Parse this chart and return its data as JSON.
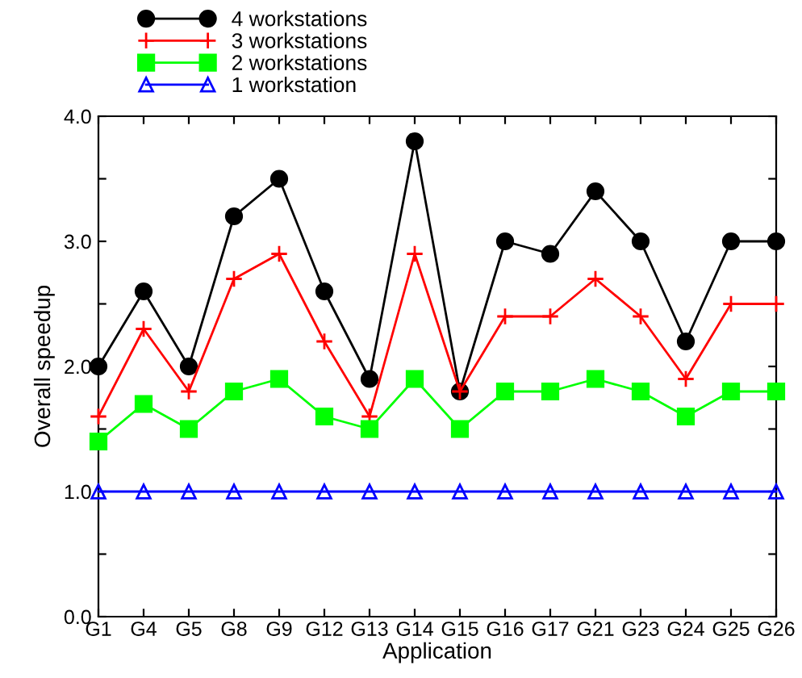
{
  "chart_data": {
    "type": "line",
    "xlabel": "Application",
    "ylabel": "Overall speedup",
    "categories": [
      "G1",
      "G4",
      "G5",
      "G8",
      "G9",
      "G12",
      "G13",
      "G14",
      "G15",
      "G16",
      "G17",
      "G21",
      "G23",
      "G24",
      "G25",
      "G26"
    ],
    "series": [
      {
        "name": "4 workstations",
        "color": "#000000",
        "marker": "circle",
        "values": [
          2.0,
          2.6,
          2.0,
          3.2,
          3.5,
          2.6,
          1.9,
          3.8,
          1.8,
          3.0,
          2.9,
          3.4,
          3.0,
          2.2,
          3.0,
          3.0
        ]
      },
      {
        "name": "3 workstations",
        "color": "#ff0000",
        "marker": "cross",
        "values": [
          1.6,
          2.3,
          1.8,
          2.7,
          2.9,
          2.2,
          1.6,
          2.9,
          1.8,
          2.4,
          2.4,
          2.7,
          2.4,
          1.9,
          2.5,
          2.5
        ]
      },
      {
        "name": "2 workstations",
        "color": "#00ff00",
        "marker": "square",
        "values": [
          1.4,
          1.7,
          1.5,
          1.8,
          1.9,
          1.6,
          1.5,
          1.9,
          1.5,
          1.8,
          1.8,
          1.9,
          1.8,
          1.6,
          1.8,
          1.8
        ]
      },
      {
        "name": "1 workstation",
        "color": "#0000ff",
        "marker": "triangle",
        "values": [
          1.0,
          1.0,
          1.0,
          1.0,
          1.0,
          1.0,
          1.0,
          1.0,
          1.0,
          1.0,
          1.0,
          1.0,
          1.0,
          1.0,
          1.0,
          1.0
        ]
      }
    ],
    "ylim": [
      0,
      4.0
    ],
    "yticks": [
      {
        "value": 0,
        "label": "0.0"
      },
      {
        "value": 0.5,
        "label": null
      },
      {
        "value": 1.0,
        "label": "1.0"
      },
      {
        "value": 1.5,
        "label": null
      },
      {
        "value": 2.0,
        "label": "2.0"
      },
      {
        "value": 2.5,
        "label": null
      },
      {
        "value": 3.0,
        "label": "3.0"
      },
      {
        "value": 3.5,
        "label": null
      },
      {
        "value": 4.0,
        "label": "4.0"
      }
    ],
    "grid": false,
    "legend": "top left",
    "line_style": "solid"
  }
}
